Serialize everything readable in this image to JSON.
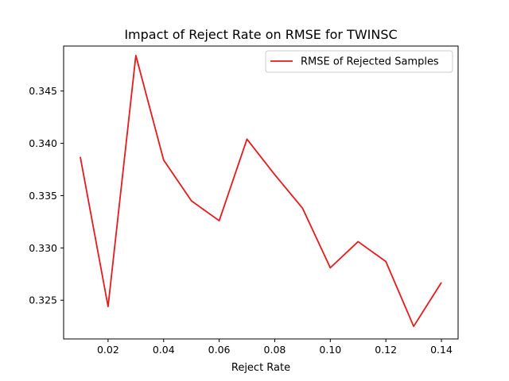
{
  "chart_data": {
    "type": "line",
    "title": "Impact of Reject Rate on RMSE for TWINSC",
    "xlabel": "Reject Rate",
    "ylabel": "",
    "xlim": [
      0.004,
      0.146
    ],
    "ylim": [
      0.3213,
      0.3493
    ],
    "xticks": [
      0.02,
      0.04,
      0.06,
      0.08,
      0.1,
      0.12,
      0.14
    ],
    "xtick_labels": [
      "0.02",
      "0.04",
      "0.06",
      "0.08",
      "0.10",
      "0.12",
      "0.14"
    ],
    "yticks": [
      0.325,
      0.33,
      0.335,
      0.34,
      0.345
    ],
    "ytick_labels": [
      "0.325",
      "0.330",
      "0.335",
      "0.340",
      "0.345"
    ],
    "grid": false,
    "legend_position": "top-right",
    "series": [
      {
        "name": "RMSE of Rejected Samples",
        "color": "#e41a1c",
        "x": [
          0.01,
          0.02,
          0.03,
          0.04,
          0.05,
          0.06,
          0.07,
          0.08,
          0.09,
          0.1,
          0.11,
          0.12,
          0.13,
          0.14
        ],
        "y": [
          0.3387,
          0.3244,
          0.3484,
          0.3384,
          0.3345,
          0.3326,
          0.3404,
          0.337,
          0.3338,
          0.3281,
          0.3306,
          0.3287,
          0.3225,
          0.3267
        ]
      }
    ]
  }
}
